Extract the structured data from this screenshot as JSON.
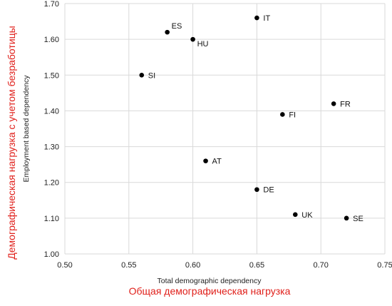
{
  "chart_data": {
    "type": "scatter",
    "xlabel": "Total demographic dependency",
    "ylabel": "Employment based dependency",
    "xlabel_overlay": "Общая демографическая нагрузка",
    "ylabel_overlay": "Демографическая нагрузка с учетом безработицы",
    "xlim": [
      0.5,
      0.75
    ],
    "ylim": [
      1.0,
      1.7
    ],
    "x_ticks": [
      "0.50",
      "0.55",
      "0.60",
      "0.65",
      "0.70",
      "0.75"
    ],
    "y_ticks": [
      "1.00",
      "1.10",
      "1.20",
      "1.30",
      "1.40",
      "1.50",
      "1.60",
      "1.70"
    ],
    "grid": true,
    "points": [
      {
        "label": "IT",
        "x": 0.65,
        "y": 1.66
      },
      {
        "label": "ES",
        "x": 0.58,
        "y": 1.62
      },
      {
        "label": "HU",
        "x": 0.6,
        "y": 1.6
      },
      {
        "label": "SI",
        "x": 0.56,
        "y": 1.5
      },
      {
        "label": "FR",
        "x": 0.71,
        "y": 1.42
      },
      {
        "label": "FI",
        "x": 0.67,
        "y": 1.39
      },
      {
        "label": "AT",
        "x": 0.61,
        "y": 1.26
      },
      {
        "label": "DE",
        "x": 0.65,
        "y": 1.18
      },
      {
        "label": "UK",
        "x": 0.68,
        "y": 1.11
      },
      {
        "label": "SE",
        "x": 0.72,
        "y": 1.1
      }
    ],
    "colors": {
      "points": "#000000",
      "grid": "#d9d9d9",
      "overlay_text": "#e0201b"
    }
  }
}
